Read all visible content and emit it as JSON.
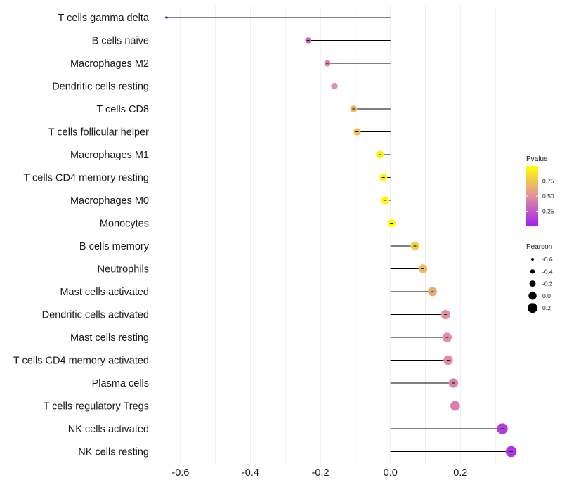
{
  "chart_data": {
    "type": "lollipop",
    "xlim": [
      -0.67,
      0.36
    ],
    "x_ticks": [
      -0.6,
      -0.4,
      -0.2,
      0.0,
      0.2
    ],
    "x_tick_labels": [
      "-0.6",
      "-0.4",
      "-0.2",
      "0.0",
      "0.2"
    ],
    "points": [
      {
        "label": "T cells gamma delta",
        "pearson": -0.64,
        "pvalue": 0.02
      },
      {
        "label": "B cells naive",
        "pearson": -0.235,
        "pvalue": 0.32
      },
      {
        "label": "Macrophages M2",
        "pearson": -0.18,
        "pvalue": 0.44
      },
      {
        "label": "Dendritic cells resting",
        "pearson": -0.16,
        "pvalue": 0.5
      },
      {
        "label": "T cells CD8",
        "pearson": -0.105,
        "pvalue": 0.67
      },
      {
        "label": "T cells follicular helper",
        "pearson": -0.095,
        "pvalue": 0.72
      },
      {
        "label": "Macrophages M1",
        "pearson": -0.03,
        "pvalue": 0.94
      },
      {
        "label": "T cells CD4 memory resting",
        "pearson": -0.02,
        "pvalue": 0.95
      },
      {
        "label": "Macrophages M0",
        "pearson": -0.015,
        "pvalue": 0.97
      },
      {
        "label": "Monocytes",
        "pearson": 0.003,
        "pvalue": 1.0
      },
      {
        "label": "B cells memory",
        "pearson": 0.07,
        "pvalue": 0.78
      },
      {
        "label": "Neutrophils",
        "pearson": 0.093,
        "pvalue": 0.7
      },
      {
        "label": "Mast cells activated",
        "pearson": 0.12,
        "pvalue": 0.62
      },
      {
        "label": "Dendritic cells activated",
        "pearson": 0.158,
        "pvalue": 0.52
      },
      {
        "label": "Mast cells resting",
        "pearson": 0.162,
        "pvalue": 0.5
      },
      {
        "label": "T cells CD4 memory activated",
        "pearson": 0.165,
        "pvalue": 0.49
      },
      {
        "label": "Plasma cells",
        "pearson": 0.18,
        "pvalue": 0.45
      },
      {
        "label": "T cells regulatory  Tregs ",
        "pearson": 0.185,
        "pvalue": 0.43
      },
      {
        "label": "NK cells activated",
        "pearson": 0.32,
        "pvalue": 0.13
      },
      {
        "label": "NK cells resting",
        "pearson": 0.345,
        "pvalue": 0.1
      }
    ],
    "color_legend": {
      "title": "Pvalue",
      "range": [
        0.0,
        1.0
      ],
      "ticks": [
        0.25,
        0.5,
        0.75
      ],
      "tick_labels": [
        "0.25",
        "0.50",
        "0.75"
      ],
      "low_color": "#a020f0",
      "mid_color": "#e0909e",
      "high_color": "#ffff00"
    },
    "size_legend": {
      "title": "Pearson",
      "values": [
        -0.6,
        -0.4,
        -0.2,
        0.0,
        0.2
      ],
      "labels": [
        "-0.6",
        "-0.4",
        "-0.2",
        "0.0",
        "0.2"
      ]
    },
    "colors": {
      "grid": "#ebebeb",
      "stem": "#000000",
      "background": "#ffffff"
    }
  }
}
